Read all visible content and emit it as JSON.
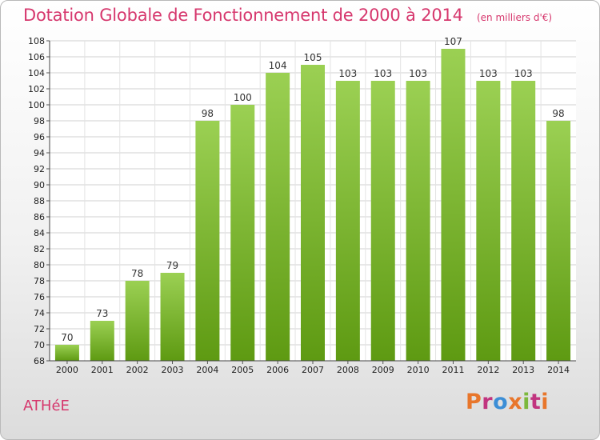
{
  "header": {
    "title": "Dotation Globale de Fonctionnement de 2000 à 2014",
    "unit": "(en milliers d'€)"
  },
  "footer": {
    "place": "ATHéE",
    "brand": "Proxiti"
  },
  "colors": {
    "title": "#d6376d",
    "bar_top": "#9bd053",
    "bar_bottom": "#5e9a12",
    "brand_letters": [
      "#e8762b",
      "#c1347f",
      "#3c8ed6",
      "#e8762b",
      "#7cb83c",
      "#c1347f",
      "#e8762b"
    ]
  },
  "chart_data": {
    "type": "bar",
    "title": "Dotation Globale de Fonctionnement de 2000 à 2014",
    "subtitle": "(en milliers d'€)",
    "categories": [
      "2000",
      "2001",
      "2002",
      "2003",
      "2004",
      "2005",
      "2006",
      "2007",
      "2008",
      "2009",
      "2010",
      "2011",
      "2012",
      "2013",
      "2014"
    ],
    "values": [
      70,
      73,
      78,
      79,
      98,
      100,
      104,
      105,
      103,
      103,
      103,
      107,
      103,
      103,
      98
    ],
    "xlabel": "",
    "ylabel": "",
    "ylim": [
      68,
      108
    ],
    "yticks": [
      68,
      70,
      72,
      74,
      76,
      78,
      80,
      82,
      84,
      86,
      88,
      90,
      92,
      94,
      96,
      98,
      100,
      102,
      104,
      106,
      108
    ],
    "grid": true,
    "legend": "none"
  }
}
